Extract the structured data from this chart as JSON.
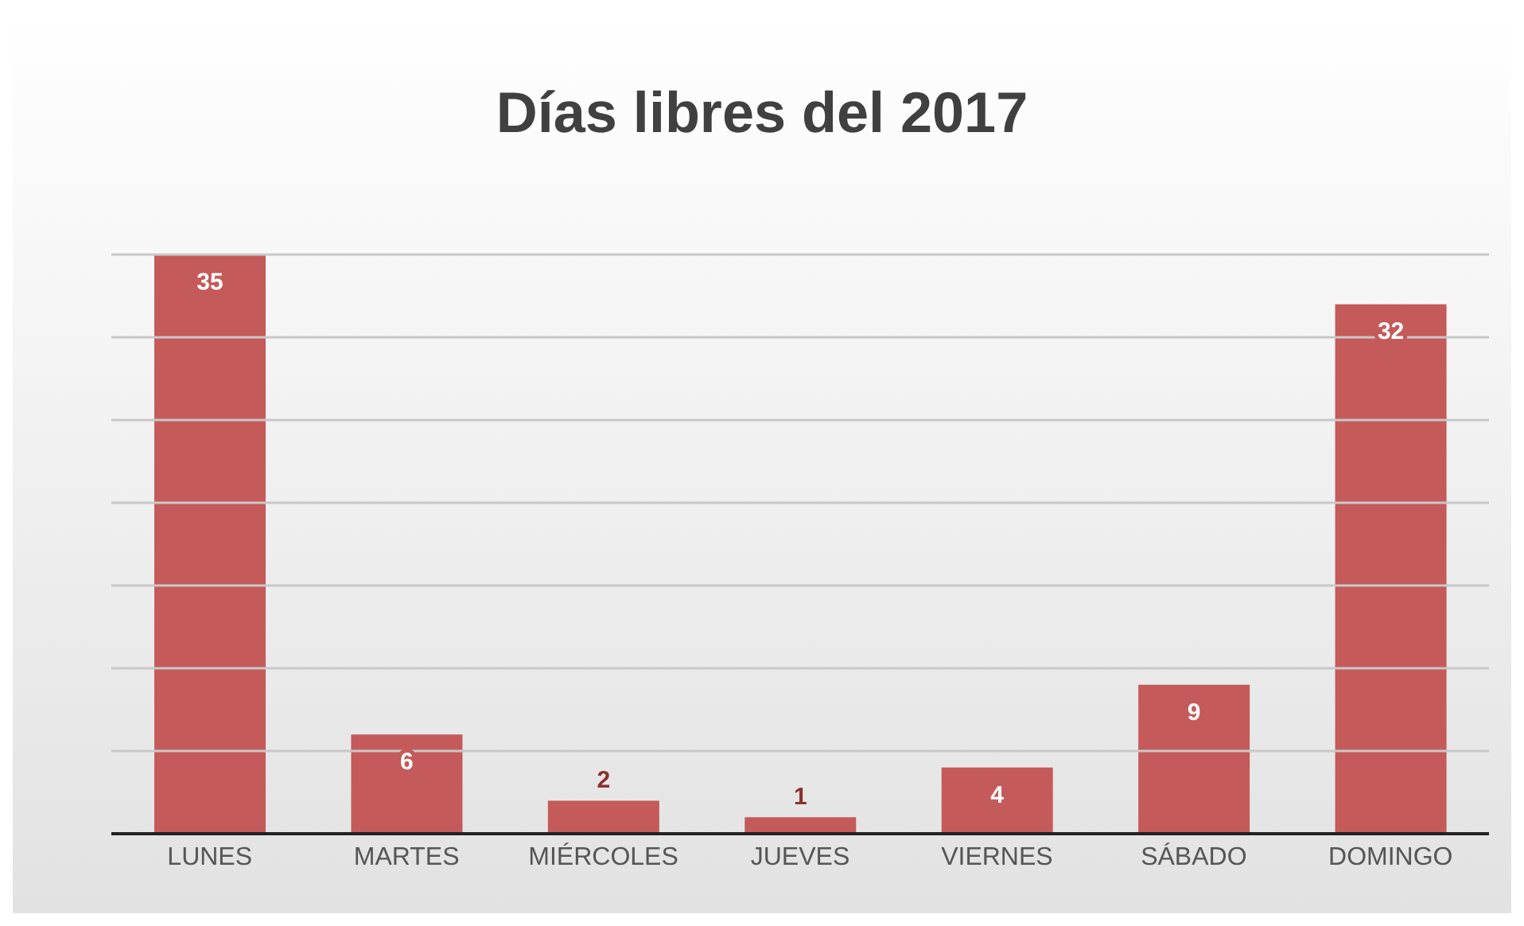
{
  "chart_data": {
    "type": "bar",
    "title": "Días libres del 2017",
    "categories": [
      "LUNES",
      "MARTES",
      "MIÉRCOLES",
      "JUEVES",
      "VIERNES",
      "SÁBADO",
      "DOMINGO"
    ],
    "values": [
      35,
      6,
      2,
      1,
      4,
      9,
      32
    ],
    "color": "#c55a5a",
    "ylim": [
      0,
      35
    ],
    "yticks": [
      {
        "value": 0,
        "label": null
      },
      {
        "value": 5,
        "label": null
      },
      {
        "value": 10,
        "label": null
      },
      {
        "value": 15,
        "label": null
      },
      {
        "value": 20,
        "label": null
      },
      {
        "value": 25,
        "label": null
      },
      {
        "value": 30,
        "label": null
      },
      {
        "value": 35,
        "label": null
      }
    ],
    "tick_labels": "x",
    "grid": "y",
    "data_labels": true
  }
}
